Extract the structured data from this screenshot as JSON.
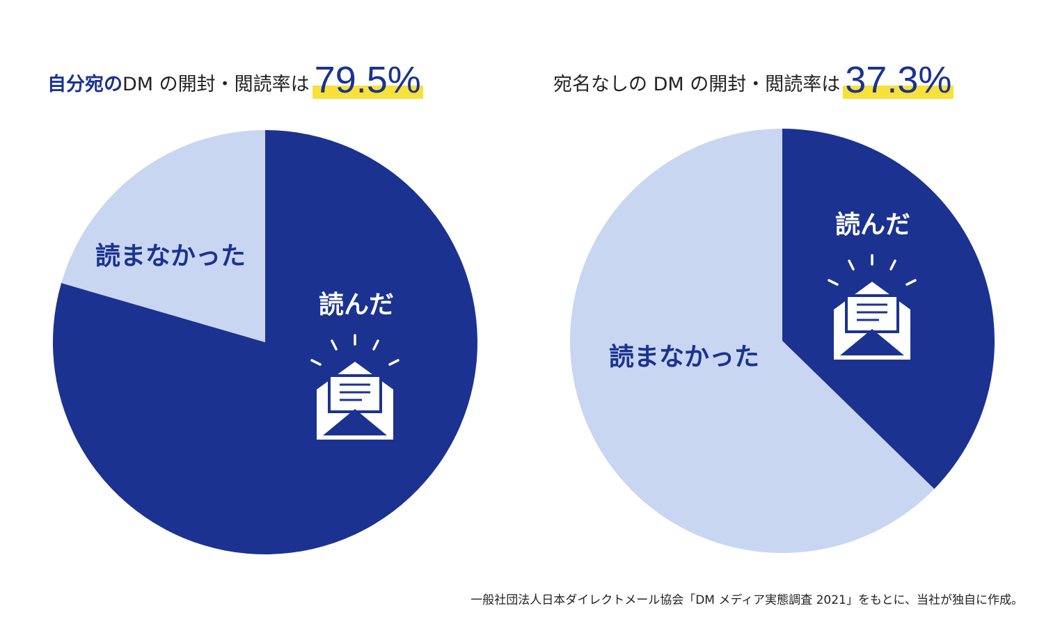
{
  "titles": {
    "left": {
      "emphasis": "自分宛の",
      "text": " DM の開封・閲読率は",
      "percent": "79.5%"
    },
    "right": {
      "text": "宛名なしの DM の開封・閲読率は ",
      "percent": "37.3%"
    }
  },
  "colors": {
    "read": "#1b3290",
    "unread": "#c9d6f2",
    "highlight": "#f7e13a",
    "icon": "#ffffff"
  },
  "icons": {
    "left": "open-envelope-icon",
    "right": "open-envelope-icon"
  },
  "chart_data": [
    {
      "type": "pie",
      "slices": [
        {
          "label": "読んだ",
          "value": 79.5,
          "color": "#1b3290",
          "text_color": "#ffffff"
        },
        {
          "label": "読まなかった",
          "value": 20.5,
          "color": "#c9d6f2",
          "text_color": "#1b3290"
        }
      ]
    },
    {
      "type": "pie",
      "slices": [
        {
          "label": "読んだ",
          "value": 37.3,
          "color": "#1b3290",
          "text_color": "#ffffff"
        },
        {
          "label": "読まなかった",
          "value": 62.7,
          "color": "#c9d6f2",
          "text_color": "#1b3290"
        }
      ]
    }
  ],
  "source_note": "一般社団法人日本ダイレクトメール協会「DM メディア実態調査 2021」をもとに、当社が独自に作成。"
}
